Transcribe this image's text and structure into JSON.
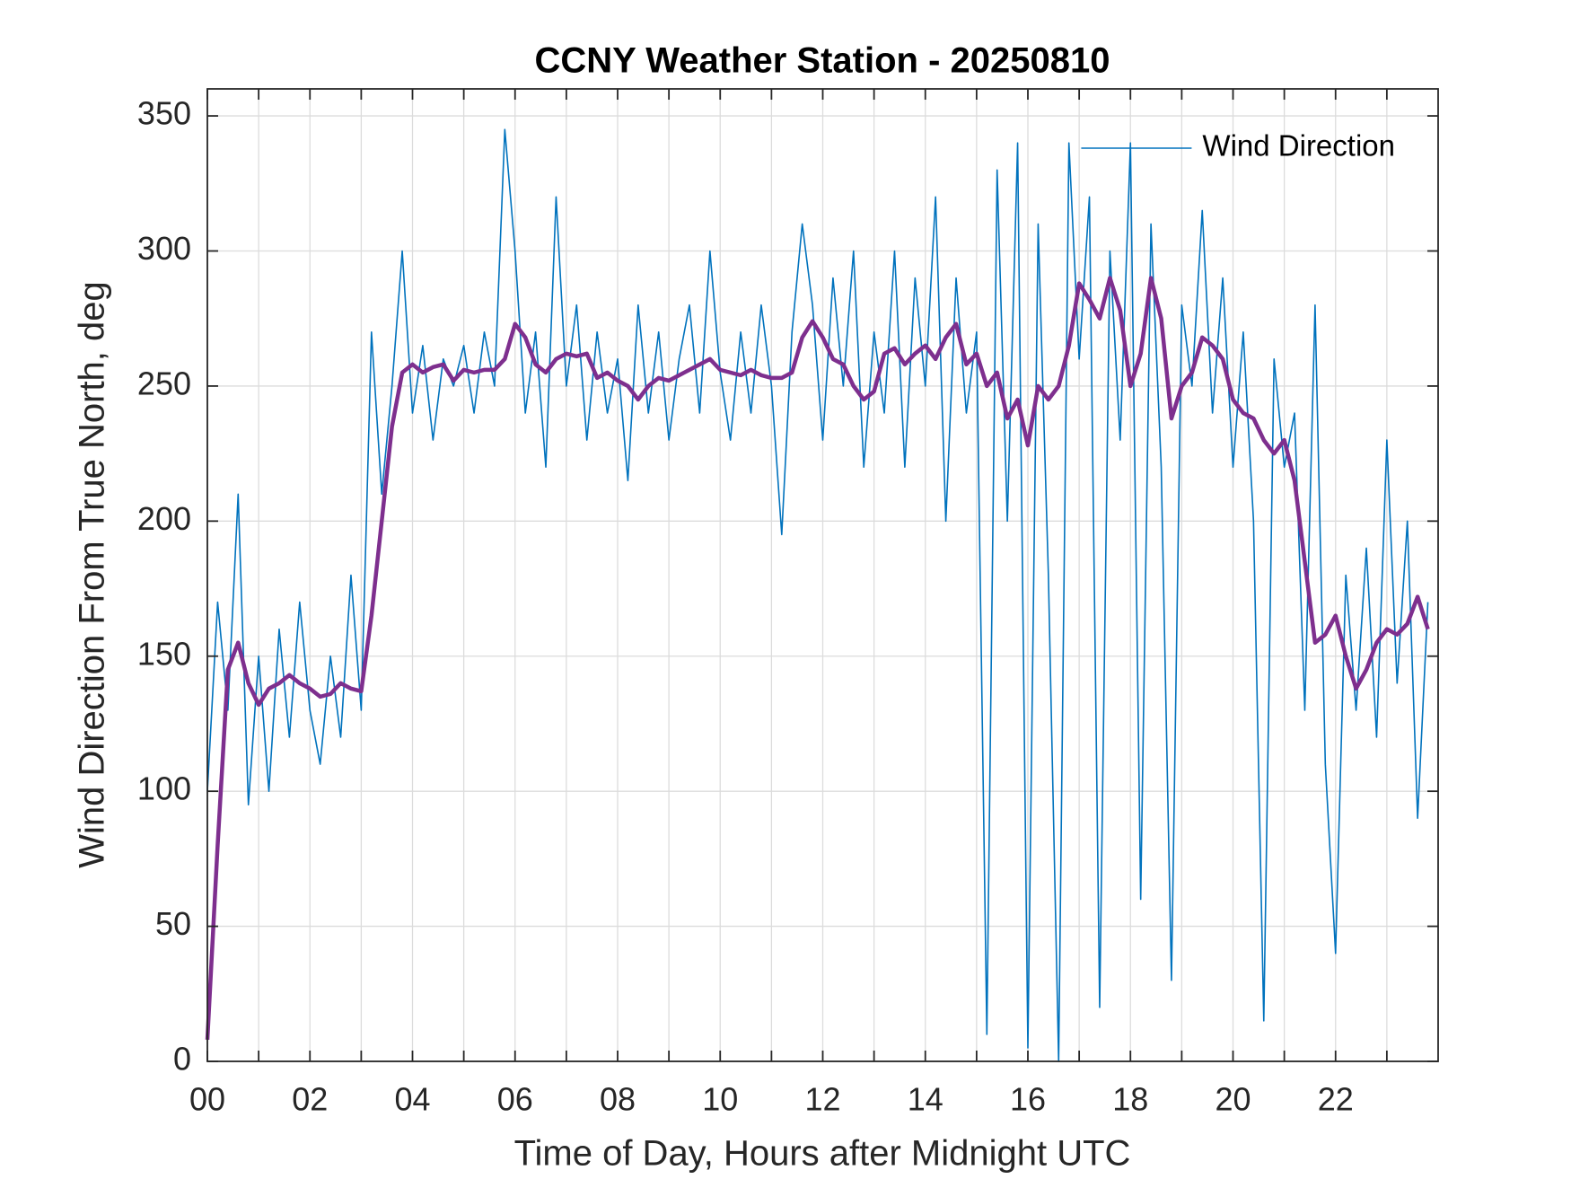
{
  "chart_data": {
    "type": "line",
    "title": "CCNY Weather Station - 20250810",
    "x_label": "Time of Day, Hours after Midnight UTC",
    "y_label": "Wind Direction From True North, deg",
    "xlim": [
      0,
      24
    ],
    "ylim": [
      0,
      360
    ],
    "xticks": [
      {
        "value": 0,
        "label": "00"
      },
      {
        "value": 2,
        "label": "02"
      },
      {
        "value": 4,
        "label": "04"
      },
      {
        "value": 6,
        "label": "06"
      },
      {
        "value": 8,
        "label": "08"
      },
      10,
      12,
      14,
      16,
      18,
      20,
      22
    ],
    "xminorticks": [
      1,
      3,
      5,
      7,
      9,
      11,
      13,
      15,
      17,
      19,
      21,
      23
    ],
    "yticks": [
      0,
      50,
      100,
      150,
      200,
      250,
      300,
      350
    ],
    "grid": true,
    "legend": "northeast",
    "x": [
      0,
      0.2,
      0.4,
      0.6,
      0.8,
      1,
      1.2,
      1.4,
      1.6,
      1.8,
      2,
      2.2,
      2.4,
      2.6,
      2.8,
      3,
      3.2,
      3.4,
      3.6,
      3.8,
      4,
      4.2,
      4.4,
      4.6,
      4.8,
      5,
      5.2,
      5.4,
      5.6,
      5.8,
      6,
      6.2,
      6.4,
      6.6,
      6.8,
      7,
      7.2,
      7.4,
      7.6,
      7.8,
      8,
      8.2,
      8.4,
      8.6,
      8.8,
      9,
      9.2,
      9.4,
      9.6,
      9.8,
      10,
      10.2,
      10.4,
      10.6,
      10.8,
      11,
      11.2,
      11.4,
      11.6,
      11.8,
      12,
      12.2,
      12.4,
      12.6,
      12.8,
      13,
      13.2,
      13.4,
      13.6,
      13.8,
      14,
      14.2,
      14.4,
      14.6,
      14.8,
      15,
      15.2,
      15.4,
      15.6,
      15.8,
      16,
      16.2,
      16.4,
      16.6,
      16.8,
      17,
      17.2,
      17.4,
      17.6,
      17.8,
      18,
      18.2,
      18.4,
      18.6,
      18.8,
      19,
      19.2,
      19.4,
      19.6,
      19.8,
      20,
      20.2,
      20.4,
      20.6,
      20.8,
      21,
      21.2,
      21.4,
      21.6,
      21.8,
      22,
      22.2,
      22.4,
      22.6,
      22.8,
      23,
      23.2,
      23.4,
      23.6,
      23.8
    ],
    "series": [
      {
        "name": "Wind Direction",
        "color": "#0072bd",
        "width": 1.6,
        "values": [
          100,
          170,
          130,
          210,
          95,
          150,
          100,
          160,
          120,
          170,
          130,
          110,
          150,
          120,
          180,
          130,
          270,
          210,
          250,
          300,
          240,
          265,
          230,
          260,
          250,
          265,
          240,
          270,
          250,
          345,
          300,
          240,
          270,
          220,
          320,
          250,
          280,
          230,
          270,
          240,
          260,
          215,
          280,
          240,
          270,
          230,
          260,
          280,
          240,
          300,
          255,
          230,
          270,
          240,
          280,
          250,
          195,
          270,
          310,
          280,
          230,
          290,
          250,
          300,
          220,
          270,
          240,
          300,
          220,
          290,
          250,
          320,
          200,
          290,
          240,
          270,
          10,
          330,
          200,
          340,
          5,
          310,
          180,
          0,
          340,
          260,
          320,
          20,
          300,
          230,
          340,
          60,
          310,
          220,
          30,
          280,
          250,
          315,
          240,
          290,
          220,
          270,
          200,
          15,
          260,
          220,
          240,
          130,
          280,
          110,
          40,
          180,
          130,
          190,
          120,
          230,
          140,
          200,
          90,
          170
        ]
      },
      {
        "color": "#7e2f8e",
        "width": 4.5,
        "values": [
          8,
          80,
          145,
          155,
          140,
          132,
          138,
          140,
          143,
          140,
          138,
          135,
          136,
          140,
          138,
          137,
          165,
          200,
          235,
          255,
          258,
          255,
          257,
          258,
          252,
          256,
          255,
          256,
          256,
          260,
          273,
          268,
          258,
          255,
          260,
          262,
          261,
          262,
          253,
          255,
          252,
          250,
          245,
          250,
          253,
          252,
          254,
          256,
          258,
          260,
          256,
          255,
          254,
          256,
          254,
          253,
          253,
          255,
          268,
          274,
          268,
          260,
          258,
          250,
          245,
          248,
          262,
          264,
          258,
          262,
          265,
          260,
          268,
          273,
          258,
          262,
          250,
          255,
          238,
          245,
          228,
          250,
          245,
          250,
          265,
          288,
          282,
          275,
          290,
          278,
          250,
          262,
          290,
          275,
          238,
          250,
          255,
          268,
          265,
          260,
          245,
          240,
          238,
          230,
          225,
          230,
          215,
          185,
          155,
          158,
          165,
          150,
          138,
          145,
          155,
          160,
          158,
          162,
          172,
          160
        ]
      }
    ]
  }
}
